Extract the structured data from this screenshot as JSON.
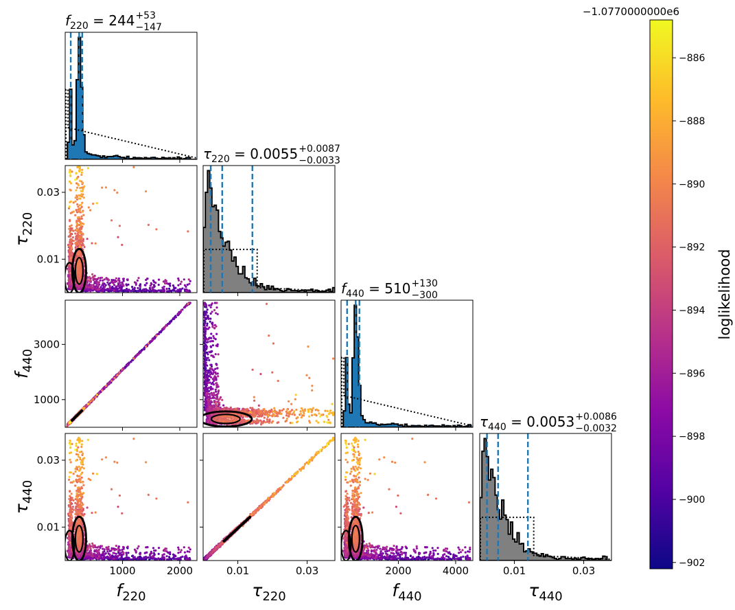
{
  "chart_data": {
    "type": "corner",
    "parameters": [
      {
        "symbol": "f",
        "sub": "220",
        "range": [
          0,
          2300
        ],
        "ticks": [
          {
            "v": 1000,
            "label": "1000"
          },
          {
            "v": 2000,
            "label": "2000"
          }
        ]
      },
      {
        "symbol": "τ",
        "sub": "220",
        "range": [
          0,
          0.038
        ],
        "ticks": [
          {
            "v": 0.01,
            "label": "0.01"
          },
          {
            "v": 0.03,
            "label": "0.03"
          }
        ]
      },
      {
        "symbol": "f",
        "sub": "440",
        "range": [
          0,
          4600
        ],
        "ticks": [
          {
            "v": 1000,
            "label": "1000"
          },
          {
            "v": 3000,
            "label": "3000"
          }
        ]
      },
      {
        "symbol": "τ",
        "sub": "440",
        "range": [
          0,
          0.038
        ],
        "ticks": [
          {
            "v": 0.01,
            "label": "0.01"
          },
          {
            "v": 0.03,
            "label": "0.03"
          }
        ]
      }
    ],
    "x_tick_labels": [
      [
        {
          "v": 1000,
          "label": "1000"
        },
        {
          "v": 2000,
          "label": "2000"
        }
      ],
      [
        {
          "v": 0.01,
          "label": "0.01"
        },
        {
          "v": 0.03,
          "label": "0.03"
        }
      ],
      [
        {
          "v": 2000,
          "label": "2000"
        },
        {
          "v": 4000,
          "label": "4000"
        }
      ],
      [
        {
          "v": 0.01,
          "label": "0.01"
        },
        {
          "v": 0.03,
          "label": "0.03"
        }
      ]
    ],
    "titles": [
      {
        "symbol": "f",
        "sub": "220",
        "eq": " = 244",
        "upper": "+53",
        "lower": "−147"
      },
      {
        "symbol": "τ",
        "sub": "220",
        "eq": " = 0.0055",
        "upper": "+0.0087",
        "lower": "−0.0033"
      },
      {
        "symbol": "f",
        "sub": "440",
        "eq": " = 510",
        "upper": "+130",
        "lower": "−300"
      },
      {
        "symbol": "τ",
        "sub": "440",
        "eq": " = 0.0053",
        "upper": "+0.0086",
        "lower": "−0.0032"
      }
    ],
    "quantiles": [
      [
        97,
        244,
        297
      ],
      [
        0.0022,
        0.0055,
        0.0142
      ],
      [
        210,
        510,
        640
      ],
      [
        0.0021,
        0.0053,
        0.0139
      ]
    ],
    "colorbar": {
      "label": "loglikelihood",
      "offset": "−1.0770000000e6",
      "range": [
        -902.2,
        -884.8
      ],
      "ticks": [
        {
          "v": -886,
          "label": "−886"
        },
        {
          "v": -888,
          "label": "−888"
        },
        {
          "v": -890,
          "label": "−890"
        },
        {
          "v": -892,
          "label": "−892"
        },
        {
          "v": -894,
          "label": "−894"
        },
        {
          "v": -896,
          "label": "−896"
        },
        {
          "v": -898,
          "label": "−898"
        },
        {
          "v": -900,
          "label": "−900"
        },
        {
          "v": -902,
          "label": "−902"
        }
      ],
      "colormap": [
        "#0d0887",
        "#5302a3",
        "#8b0aa5",
        "#b83289",
        "#db5c68",
        "#f48849",
        "#febc2a",
        "#f0f921"
      ]
    },
    "histogram_colors": {
      "fill": "#808080",
      "edge": "#000000",
      "prior": "#000000",
      "quantile": "#1f77b4"
    },
    "grid": false,
    "legend": "none"
  }
}
